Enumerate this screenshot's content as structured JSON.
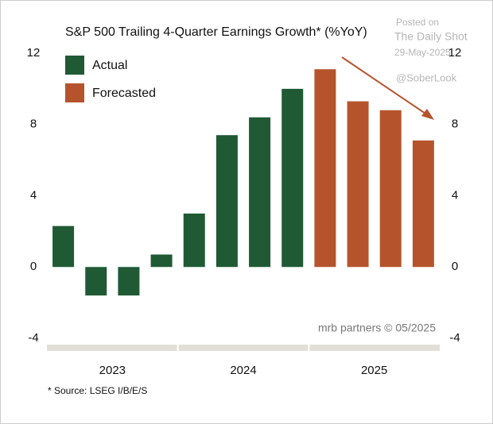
{
  "chart_data": {
    "type": "bar",
    "title": "S&P 500 Trailing 4-Quarter Earnings Growth* (%YoY)",
    "categories": [
      null,
      null,
      null,
      null,
      null,
      null,
      null,
      null,
      null,
      null,
      null,
      null
    ],
    "year_labels": [
      "2023",
      "2024",
      "2025"
    ],
    "series": [
      {
        "name": "Actual",
        "color": "#1f5a34",
        "values": [
          2.3,
          -1.6,
          -1.6,
          0.7,
          3.0,
          7.4,
          8.4,
          10.0,
          null,
          null,
          null,
          null
        ]
      },
      {
        "name": "Forecasted",
        "color": "#b5542c",
        "values": [
          null,
          null,
          null,
          null,
          null,
          null,
          null,
          null,
          11.1,
          9.3,
          8.8,
          7.1
        ]
      }
    ],
    "ylim": [
      -4,
      12
    ],
    "yticks": [
      -4,
      0,
      4,
      8,
      12
    ],
    "grid": false,
    "legend": "upper left",
    "annotations": {
      "source": "* Source: LSEG I/B/E/S",
      "credit": "mrb partners © 05/2025",
      "watermark": [
        "Posted on",
        "The Daily Shot",
        "29-May-2025",
        "@SoberLook"
      ]
    }
  }
}
